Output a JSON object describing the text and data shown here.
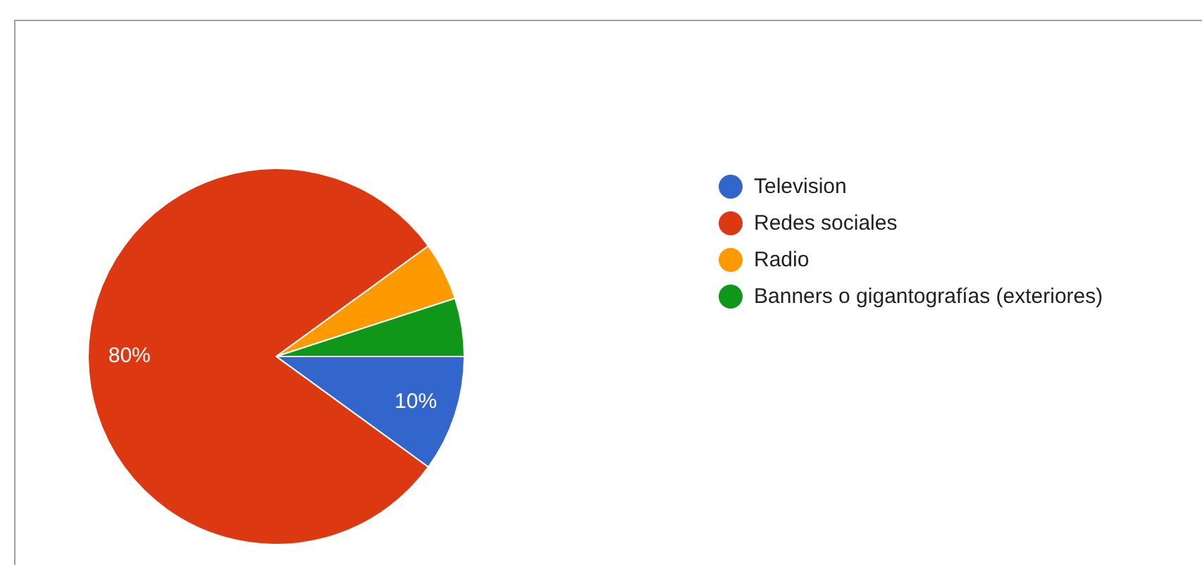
{
  "chart_data": {
    "type": "pie",
    "categories": [
      "Television",
      "Redes sociales",
      "Radio",
      "Banners o gigantografías (exteriores)"
    ],
    "values": [
      10,
      80,
      5,
      5
    ],
    "colors": [
      "#3366cc",
      "#dc3912",
      "#ff9900",
      "#109618"
    ],
    "value_labels": [
      "10%",
      "80%",
      null,
      null
    ],
    "legend": "right"
  }
}
